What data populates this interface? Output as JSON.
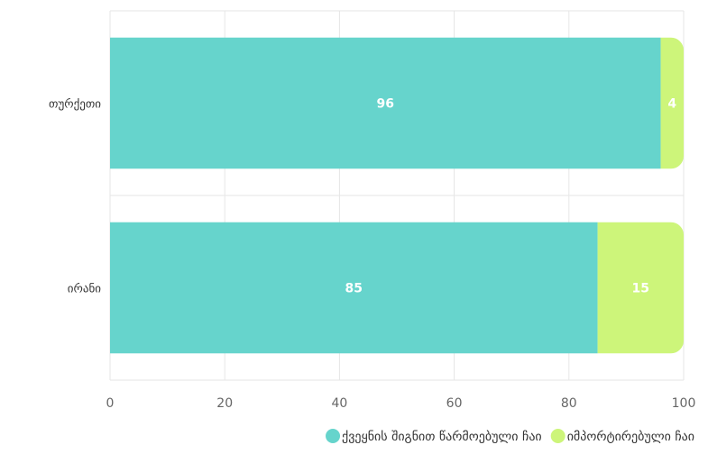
{
  "chart_data": {
    "type": "bar",
    "orientation": "horizontal",
    "stacked": true,
    "categories": [
      "თურქეთი",
      "ირანი"
    ],
    "series": [
      {
        "name": "ქვეყნის შიგნით წარმოებული ჩაი",
        "values": [
          96,
          85
        ],
        "color": "#66d4cc"
      },
      {
        "name": "იმპორტირებული ჩაი",
        "values": [
          4,
          15
        ],
        "color": "#cdf57a"
      }
    ],
    "xlim": [
      0,
      100
    ],
    "xticks": [
      0,
      20,
      40,
      60,
      80,
      100
    ],
    "grid": true,
    "legend_position": "bottom-right",
    "label_color": "#ffffff"
  }
}
